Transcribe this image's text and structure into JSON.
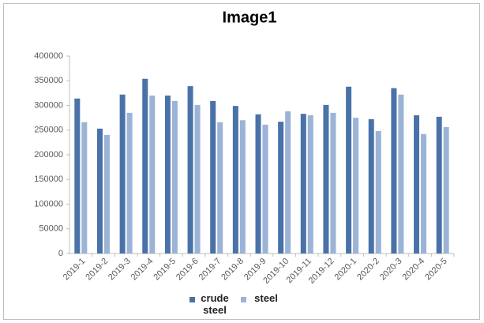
{
  "chart_data": {
    "type": "bar",
    "title": "Image1",
    "categories": [
      "2019-1",
      "2019-2",
      "2019-3",
      "2019-4",
      "2019-5",
      "2019-6",
      "2019-7",
      "2019-8",
      "2019-9",
      "2019-10",
      "2019-11",
      "2019-12",
      "2020-1",
      "2020-2",
      "2020-3",
      "2020-4",
      "2020-5"
    ],
    "series": [
      {
        "name": "crude steel",
        "color": "#4a72a8",
        "values": [
          314000,
          253000,
          322000,
          354000,
          320000,
          339000,
          309000,
          299000,
          282000,
          267000,
          283000,
          301000,
          338000,
          272000,
          335000,
          280000,
          277000
        ]
      },
      {
        "name": "steel",
        "color": "#9bb3d6",
        "values": [
          266000,
          240000,
          285000,
          320000,
          309000,
          301000,
          266000,
          270000,
          261000,
          288000,
          280000,
          285000,
          275000,
          248000,
          322000,
          242000,
          256000
        ]
      }
    ],
    "ylim": [
      0,
      400000
    ],
    "yticks": [
      0,
      50000,
      100000,
      150000,
      200000,
      250000,
      300000,
      350000,
      400000
    ],
    "grid": false
  }
}
